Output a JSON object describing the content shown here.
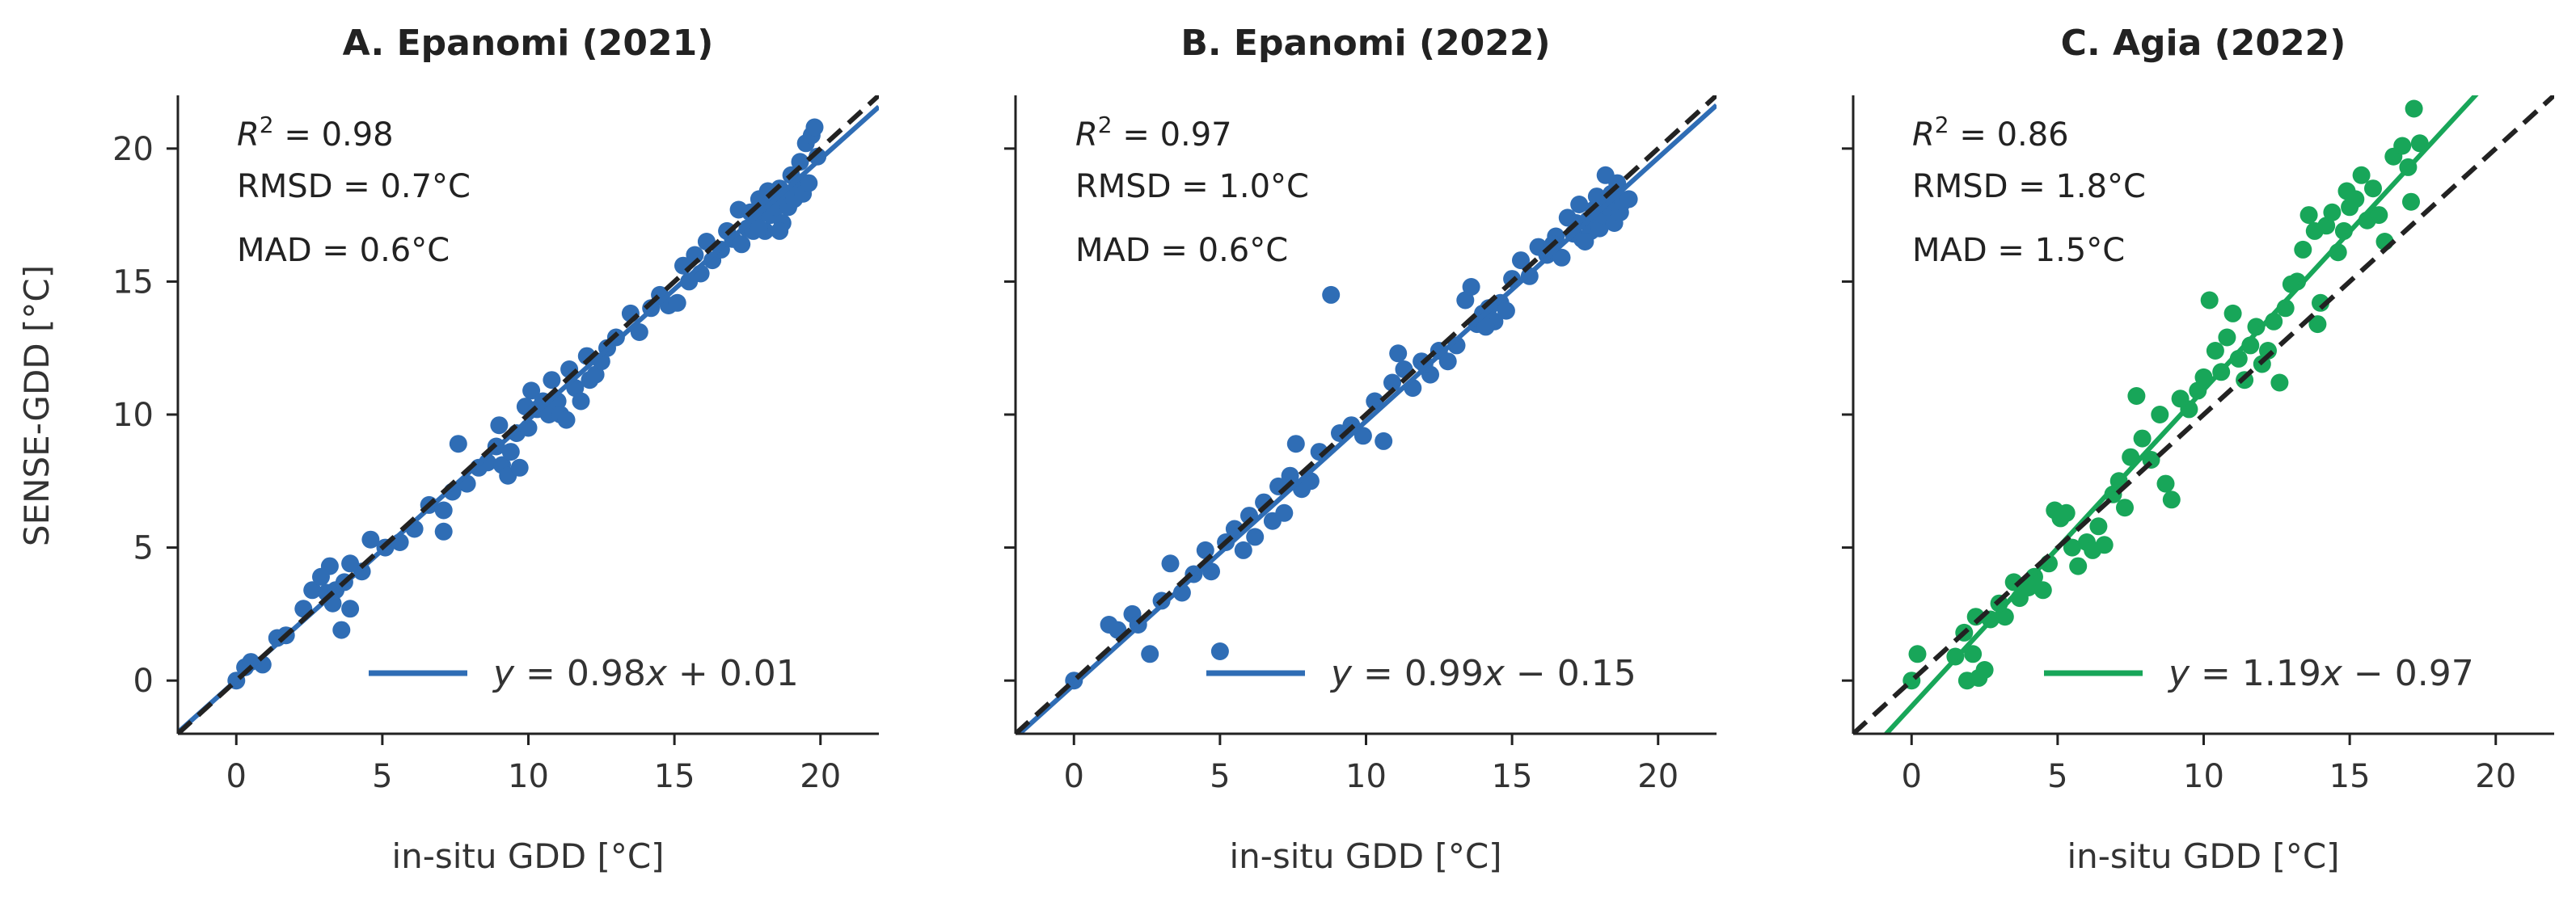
{
  "figure": {
    "ylabel": "SENSE-GDD [°C]",
    "xlabel": "in-situ GDD [°C]"
  },
  "panels": [
    {
      "title": "A. Epanomi (2021)",
      "stats": {
        "r2_prefix": "R",
        "r2_sup": "2",
        "r2_value": " = 0.98",
        "rmsd": "RMSD = 0.7°C",
        "mad": "MAD = 0.6°C"
      },
      "legend": {
        "y": "y",
        "eq": " = 0.98",
        "x": "x",
        "rest": " + 0.01"
      }
    },
    {
      "title": "B. Epanomi (2022)",
      "stats": {
        "r2_prefix": "R",
        "r2_sup": "2",
        "r2_value": " = 0.97",
        "rmsd": "RMSD = 1.0°C",
        "mad": "MAD = 0.6°C"
      },
      "legend": {
        "y": "y",
        "eq": " = 0.99",
        "x": "x",
        "rest": " − 0.15"
      }
    },
    {
      "title": "C. Agia (2022)",
      "stats": {
        "r2_prefix": "R",
        "r2_sup": "2",
        "r2_value": " = 0.86",
        "rmsd": "RMSD = 1.8°C",
        "mad": "MAD = 1.5°C"
      },
      "legend": {
        "y": "y",
        "eq": " = 1.19",
        "x": "x",
        "rest": " − 0.97"
      }
    }
  ],
  "chart_data": [
    {
      "type": "scatter",
      "title": "A. Epanomi (2021)",
      "xlabel": "in-situ GDD [°C]",
      "ylabel": "SENSE-GDD [°C]",
      "xlim": [
        -2,
        22
      ],
      "ylim": [
        -2,
        22
      ],
      "xticks": [
        0,
        5,
        10,
        15,
        20
      ],
      "yticks": [
        0,
        5,
        10,
        15,
        20
      ],
      "color": "#2f6db5",
      "fit": {
        "slope": 0.98,
        "intercept": 0.01
      },
      "identity_line": true,
      "points": [
        [
          0,
          0
        ],
        [
          0.3,
          0.5
        ],
        [
          0.5,
          0.7
        ],
        [
          0.9,
          0.6
        ],
        [
          1.4,
          1.6
        ],
        [
          1.7,
          1.7
        ],
        [
          2.3,
          2.7
        ],
        [
          2.6,
          3.4
        ],
        [
          2.9,
          3.9
        ],
        [
          3.1,
          3.3
        ],
        [
          3.2,
          4.3
        ],
        [
          3.3,
          2.9
        ],
        [
          3.4,
          3.4
        ],
        [
          3.6,
          1.9
        ],
        [
          3.7,
          3.7
        ],
        [
          3.9,
          2.7
        ],
        [
          3.9,
          4.4
        ],
        [
          4.3,
          4.1
        ],
        [
          4.6,
          5.3
        ],
        [
          5.1,
          5.0
        ],
        [
          5.6,
          5.2
        ],
        [
          6.1,
          5.7
        ],
        [
          6.6,
          6.6
        ],
        [
          7.1,
          5.6
        ],
        [
          7.1,
          6.4
        ],
        [
          7.4,
          7.1
        ],
        [
          7.6,
          8.9
        ],
        [
          7.9,
          7.4
        ],
        [
          8.3,
          8.0
        ],
        [
          8.6,
          8.2
        ],
        [
          8.9,
          8.8
        ],
        [
          9.0,
          9.6
        ],
        [
          9.1,
          8.1
        ],
        [
          9.3,
          7.7
        ],
        [
          9.4,
          8.6
        ],
        [
          9.6,
          9.3
        ],
        [
          9.7,
          8.0
        ],
        [
          9.9,
          10.3
        ],
        [
          10.0,
          9.5
        ],
        [
          10.1,
          10.9
        ],
        [
          10.3,
          10.2
        ],
        [
          10.5,
          10.5
        ],
        [
          10.7,
          10.0
        ],
        [
          10.8,
          11.3
        ],
        [
          11.0,
          10.5
        ],
        [
          11.1,
          10.0
        ],
        [
          11.3,
          9.8
        ],
        [
          11.4,
          11.7
        ],
        [
          11.6,
          11.0
        ],
        [
          11.8,
          10.5
        ],
        [
          12.0,
          12.2
        ],
        [
          12.1,
          11.3
        ],
        [
          12.3,
          11.5
        ],
        [
          12.5,
          12.0
        ],
        [
          12.7,
          12.5
        ],
        [
          13.0,
          12.9
        ],
        [
          13.5,
          13.8
        ],
        [
          13.8,
          13.1
        ],
        [
          14.2,
          14.0
        ],
        [
          14.5,
          14.5
        ],
        [
          14.8,
          14.1
        ],
        [
          15.1,
          14.2
        ],
        [
          15.3,
          15.6
        ],
        [
          15.5,
          15.0
        ],
        [
          15.7,
          16.0
        ],
        [
          15.9,
          15.3
        ],
        [
          16.1,
          16.5
        ],
        [
          16.3,
          15.8
        ],
        [
          16.6,
          16.2
        ],
        [
          16.8,
          16.9
        ],
        [
          17.0,
          16.6
        ],
        [
          17.2,
          17.7
        ],
        [
          17.3,
          16.4
        ],
        [
          17.5,
          17.0
        ],
        [
          17.6,
          17.6
        ],
        [
          17.7,
          16.9
        ],
        [
          17.8,
          17.3
        ],
        [
          17.9,
          18.1
        ],
        [
          18.0,
          17.7
        ],
        [
          18.1,
          16.9
        ],
        [
          18.2,
          18.4
        ],
        [
          18.3,
          17.5
        ],
        [
          18.4,
          18.0
        ],
        [
          18.5,
          17.8
        ],
        [
          18.6,
          18.5
        ],
        [
          18.7,
          17.2
        ],
        [
          18.8,
          18.2
        ],
        [
          18.9,
          17.8
        ],
        [
          19.0,
          19.0
        ],
        [
          19.1,
          18.1
        ],
        [
          19.2,
          18.6
        ],
        [
          19.3,
          19.5
        ],
        [
          19.4,
          18.3
        ],
        [
          19.5,
          20.2
        ],
        [
          19.6,
          18.7
        ],
        [
          19.7,
          20.5
        ],
        [
          19.8,
          20.8
        ],
        [
          19.9,
          19.7
        ],
        [
          17.9,
          17.0
        ],
        [
          18.6,
          16.9
        ]
      ]
    },
    {
      "type": "scatter",
      "title": "B. Epanomi (2022)",
      "xlabel": "in-situ GDD [°C]",
      "xlim": [
        -2,
        22
      ],
      "ylim": [
        -2,
        22
      ],
      "xticks": [
        0,
        5,
        10,
        15,
        20
      ],
      "yticks": [
        0,
        5,
        10,
        15,
        20
      ],
      "color": "#2f6db5",
      "fit": {
        "slope": 0.99,
        "intercept": -0.15
      },
      "identity_line": true,
      "points": [
        [
          0,
          0
        ],
        [
          1.2,
          2.1
        ],
        [
          1.5,
          1.9
        ],
        [
          2.0,
          2.5
        ],
        [
          2.2,
          2.1
        ],
        [
          2.6,
          1.0
        ],
        [
          3.0,
          3.0
        ],
        [
          3.3,
          4.4
        ],
        [
          3.7,
          3.3
        ],
        [
          4.1,
          4.0
        ],
        [
          4.5,
          4.9
        ],
        [
          4.7,
          4.1
        ],
        [
          5.0,
          1.1
        ],
        [
          5.2,
          5.2
        ],
        [
          5.5,
          5.7
        ],
        [
          5.8,
          4.9
        ],
        [
          6.0,
          6.2
        ],
        [
          6.2,
          5.4
        ],
        [
          6.5,
          6.7
        ],
        [
          6.8,
          6.0
        ],
        [
          7.0,
          7.3
        ],
        [
          7.2,
          6.3
        ],
        [
          7.4,
          7.7
        ],
        [
          7.6,
          8.9
        ],
        [
          7.8,
          7.2
        ],
        [
          8.1,
          7.5
        ],
        [
          8.4,
          8.6
        ],
        [
          8.8,
          14.5
        ],
        [
          9.1,
          9.3
        ],
        [
          9.5,
          9.6
        ],
        [
          9.9,
          9.2
        ],
        [
          10.3,
          10.5
        ],
        [
          10.6,
          9.0
        ],
        [
          10.9,
          11.2
        ],
        [
          11.1,
          12.3
        ],
        [
          11.3,
          11.7
        ],
        [
          11.6,
          11.0
        ],
        [
          11.9,
          12.0
        ],
        [
          12.2,
          11.5
        ],
        [
          12.5,
          12.4
        ],
        [
          12.8,
          12.0
        ],
        [
          13.1,
          12.6
        ],
        [
          13.4,
          14.3
        ],
        [
          13.6,
          14.8
        ],
        [
          13.8,
          13.4
        ],
        [
          14.0,
          13.8
        ],
        [
          14.2,
          14.0
        ],
        [
          14.4,
          13.5
        ],
        [
          14.6,
          14.2
        ],
        [
          14.8,
          13.9
        ],
        [
          15.0,
          15.1
        ],
        [
          15.3,
          15.8
        ],
        [
          15.6,
          15.2
        ],
        [
          15.9,
          16.3
        ],
        [
          16.2,
          16.0
        ],
        [
          16.5,
          16.7
        ],
        [
          16.7,
          15.9
        ],
        [
          16.9,
          17.4
        ],
        [
          17.1,
          16.8
        ],
        [
          17.3,
          17.9
        ],
        [
          17.4,
          16.6
        ],
        [
          17.6,
          17.3
        ],
        [
          17.7,
          16.9
        ],
        [
          17.8,
          17.7
        ],
        [
          17.9,
          18.2
        ],
        [
          18.0,
          17.0
        ],
        [
          18.1,
          17.5
        ],
        [
          18.2,
          19.0
        ],
        [
          18.3,
          17.8
        ],
        [
          18.4,
          18.3
        ],
        [
          18.5,
          17.2
        ],
        [
          18.6,
          18.7
        ],
        [
          18.7,
          17.6
        ],
        [
          18.8,
          18.0
        ],
        [
          19.0,
          18.1
        ],
        [
          14.1,
          13.3
        ],
        [
          16.4,
          16.4
        ],
        [
          17.5,
          16.5
        ],
        [
          17.2,
          17.2
        ],
        [
          12.0,
          11.9
        ]
      ]
    },
    {
      "type": "scatter",
      "title": "C. Agia (2022)",
      "xlabel": "in-situ GDD [°C]",
      "xlim": [
        -2,
        22
      ],
      "ylim": [
        -2,
        22
      ],
      "xticks": [
        0,
        5,
        10,
        15,
        20
      ],
      "yticks": [
        0,
        5,
        10,
        15,
        20
      ],
      "color": "#18a659",
      "fit": {
        "slope": 1.19,
        "intercept": -0.97
      },
      "identity_line": true,
      "points": [
        [
          0,
          0
        ],
        [
          0.2,
          1.0
        ],
        [
          1.5,
          0.9
        ],
        [
          1.8,
          1.8
        ],
        [
          1.9,
          0.0
        ],
        [
          2.1,
          1.0
        ],
        [
          2.2,
          2.4
        ],
        [
          2.3,
          0.1
        ],
        [
          2.5,
          0.4
        ],
        [
          2.7,
          2.3
        ],
        [
          3.0,
          2.9
        ],
        [
          3.2,
          2.4
        ],
        [
          3.5,
          3.7
        ],
        [
          3.7,
          3.1
        ],
        [
          4.0,
          3.5
        ],
        [
          4.2,
          3.9
        ],
        [
          4.5,
          3.4
        ],
        [
          4.7,
          4.4
        ],
        [
          4.9,
          6.4
        ],
        [
          5.1,
          6.1
        ],
        [
          5.3,
          6.3
        ],
        [
          5.5,
          5.0
        ],
        [
          5.7,
          4.3
        ],
        [
          6.0,
          5.2
        ],
        [
          6.2,
          4.9
        ],
        [
          6.4,
          5.8
        ],
        [
          6.6,
          5.1
        ],
        [
          6.9,
          7.0
        ],
        [
          7.1,
          7.5
        ],
        [
          7.3,
          6.5
        ],
        [
          7.5,
          8.4
        ],
        [
          7.7,
          10.7
        ],
        [
          7.9,
          9.1
        ],
        [
          8.2,
          8.3
        ],
        [
          8.5,
          10.0
        ],
        [
          8.7,
          7.4
        ],
        [
          8.9,
          6.8
        ],
        [
          9.2,
          10.6
        ],
        [
          9.5,
          10.2
        ],
        [
          9.8,
          10.9
        ],
        [
          10.0,
          11.4
        ],
        [
          10.2,
          14.3
        ],
        [
          10.4,
          12.4
        ],
        [
          10.6,
          11.6
        ],
        [
          10.8,
          12.9
        ],
        [
          11.0,
          13.8
        ],
        [
          11.2,
          12.1
        ],
        [
          11.4,
          11.3
        ],
        [
          11.6,
          12.6
        ],
        [
          11.8,
          13.3
        ],
        [
          12.0,
          11.9
        ],
        [
          12.2,
          12.4
        ],
        [
          12.4,
          13.5
        ],
        [
          12.6,
          11.2
        ],
        [
          12.8,
          14.0
        ],
        [
          13.0,
          14.9
        ],
        [
          13.2,
          15.0
        ],
        [
          13.4,
          16.2
        ],
        [
          13.6,
          17.5
        ],
        [
          13.8,
          16.9
        ],
        [
          14.0,
          14.2
        ],
        [
          14.2,
          17.1
        ],
        [
          14.4,
          17.6
        ],
        [
          14.6,
          16.1
        ],
        [
          14.8,
          16.9
        ],
        [
          15.0,
          17.8
        ],
        [
          15.2,
          18.1
        ],
        [
          15.4,
          19.0
        ],
        [
          15.6,
          17.3
        ],
        [
          15.8,
          18.5
        ],
        [
          16.0,
          17.5
        ],
        [
          16.2,
          16.5
        ],
        [
          16.5,
          19.7
        ],
        [
          16.8,
          20.1
        ],
        [
          17.0,
          19.3
        ],
        [
          17.2,
          21.5
        ],
        [
          17.4,
          20.2
        ],
        [
          17.1,
          18.0
        ],
        [
          14.9,
          18.4
        ],
        [
          13.9,
          13.4
        ]
      ]
    }
  ]
}
